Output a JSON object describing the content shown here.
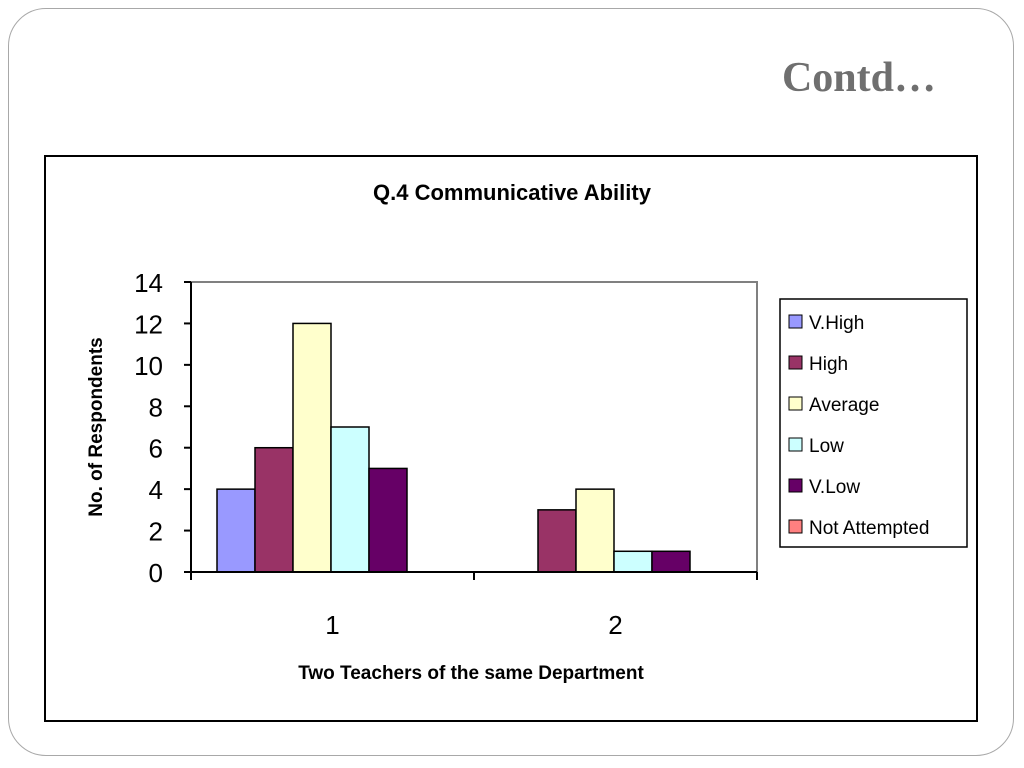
{
  "slide": {
    "title": "Contd…"
  },
  "chart_data": {
    "type": "bar",
    "title": "Q.4 Communicative Ability",
    "xlabel": "Two Teachers of the same Department",
    "ylabel": "No. of Respondents",
    "categories": [
      "1",
      "2"
    ],
    "ylim": [
      0,
      14
    ],
    "yticks": [
      "0",
      "2",
      "4",
      "6",
      "8",
      "10",
      "12",
      "14"
    ],
    "grid": false,
    "legend_position": "right",
    "series": [
      {
        "name": "V.High",
        "values": [
          4,
          0
        ],
        "color": "#9999ff"
      },
      {
        "name": "High",
        "values": [
          6,
          3
        ],
        "color": "#993366"
      },
      {
        "name": "Average",
        "values": [
          12,
          4
        ],
        "color": "#ffffcc"
      },
      {
        "name": "Low",
        "values": [
          7,
          1
        ],
        "color": "#ccffff"
      },
      {
        "name": "V.Low",
        "values": [
          5,
          1
        ],
        "color": "#660066"
      },
      {
        "name": "Not Attempted",
        "values": [
          0,
          0
        ],
        "color": "#ff8080"
      }
    ]
  }
}
